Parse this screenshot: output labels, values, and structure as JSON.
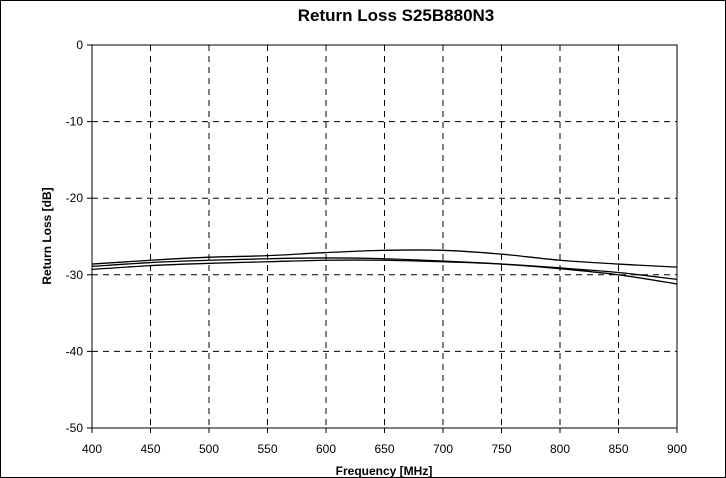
{
  "chart_data": {
    "type": "line",
    "title": "Return Loss S25B880N3",
    "xlabel": "Frequency [MHz]",
    "ylabel": "Return Loss [dB]",
    "xlim": [
      400,
      900
    ],
    "ylim": [
      -50,
      0
    ],
    "x_ticks": [
      400,
      450,
      500,
      550,
      600,
      650,
      700,
      750,
      800,
      850,
      900
    ],
    "y_ticks": [
      0,
      -10,
      -20,
      -30,
      -40,
      -50
    ],
    "grid": true,
    "legend": "none",
    "line_color": "#000000",
    "grid_color": "#000000",
    "series": [
      {
        "x": [
          400,
          450,
          500,
          550,
          600,
          650,
          700,
          750,
          800,
          850,
          900
        ],
        "values": [
          -28.6,
          -28.1,
          -27.7,
          -27.5,
          -27.1,
          -26.8,
          -26.8,
          -27.3,
          -28.1,
          -28.6,
          -29.0
        ]
      },
      {
        "x": [
          400,
          450,
          500,
          550,
          600,
          650,
          700,
          750,
          800,
          850,
          900
        ],
        "values": [
          -28.9,
          -28.4,
          -28.1,
          -27.9,
          -27.8,
          -27.9,
          -28.2,
          -28.6,
          -29.2,
          -30.0,
          -31.2
        ]
      },
      {
        "x": [
          400,
          450,
          500,
          550,
          600,
          650,
          700,
          750,
          800,
          850,
          900
        ],
        "values": [
          -29.3,
          -28.8,
          -28.5,
          -28.3,
          -28.1,
          -28.1,
          -28.3,
          -28.6,
          -29.1,
          -29.7,
          -30.6
        ]
      }
    ]
  }
}
